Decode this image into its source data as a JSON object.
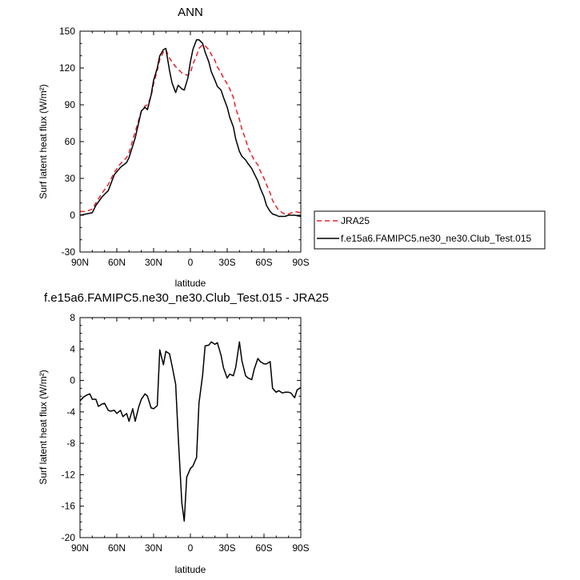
{
  "chart_data": [
    {
      "type": "line",
      "title": "ANN",
      "xlabel": "latitude",
      "ylabel": "Surf latent heat flux (W/m²)",
      "xlim": [
        -90,
        90
      ],
      "ylim": [
        -30,
        150
      ],
      "x_ticks": [
        -90,
        -60,
        -30,
        0,
        30,
        60,
        90
      ],
      "x_tick_labels": [
        "90N",
        "60N",
        "30N",
        "0",
        "30S",
        "60S",
        "90S"
      ],
      "y_ticks": [
        -30,
        0,
        30,
        60,
        90,
        120,
        150
      ],
      "y_tick_labels": [
        "-30",
        "0",
        "30",
        "60",
        "90",
        "120",
        "150"
      ],
      "legend_position": "right",
      "series": [
        {
          "name": "JRA25",
          "color": "#e8202a",
          "dash": "dashed",
          "x": [
            -90,
            -85,
            -80,
            -77,
            -72,
            -67,
            -62,
            -57,
            -52,
            -50,
            -45,
            -40,
            -37,
            -35,
            -32,
            -30,
            -27,
            -25,
            -22,
            -20,
            -17,
            -15,
            -12,
            -10,
            -7,
            -5,
            -2,
            0,
            2,
            5,
            7,
            10,
            12,
            15,
            17,
            20,
            22,
            25,
            27,
            30,
            32,
            35,
            37,
            40,
            42,
            45,
            47,
            50,
            52,
            55,
            57,
            60,
            62,
            65,
            67,
            70,
            72,
            75,
            77,
            80,
            85,
            90
          ],
          "y": [
            3,
            3,
            5,
            10,
            18,
            25,
            35,
            42,
            47,
            51,
            68,
            85,
            89,
            90,
            97,
            107,
            118,
            127,
            133,
            135,
            128,
            125,
            121,
            119,
            116,
            115,
            114,
            116,
            123,
            130,
            136,
            139,
            138,
            135,
            131,
            126,
            121,
            116,
            112,
            107,
            103,
            96,
            87,
            78,
            70,
            62,
            55,
            49,
            45,
            41,
            36,
            30,
            25,
            18,
            12,
            7,
            4,
            2,
            1,
            1,
            3,
            2
          ]
        },
        {
          "name": "f.e15a6.FAMIPC5.ne30_ne30.Club_Test.015",
          "color": "#000000",
          "dash": "solid",
          "x": [
            -90,
            -85,
            -80,
            -77,
            -72,
            -67,
            -62,
            -57,
            -52,
            -50,
            -45,
            -40,
            -37,
            -35,
            -32,
            -30,
            -27,
            -25,
            -22,
            -20,
            -17,
            -15,
            -12,
            -10,
            -7,
            -5,
            -2,
            0,
            2,
            5,
            7,
            10,
            12,
            15,
            17,
            20,
            22,
            25,
            27,
            30,
            32,
            35,
            37,
            40,
            42,
            45,
            47,
            50,
            52,
            55,
            57,
            60,
            62,
            65,
            67,
            70,
            72,
            75,
            77,
            80,
            85,
            90
          ],
          "y": [
            0,
            1,
            2,
            8,
            15,
            20,
            33,
            39,
            43,
            47,
            63,
            85,
            88,
            86,
            98,
            110,
            120,
            130,
            135,
            136,
            118,
            108,
            100,
            106,
            103,
            102,
            112,
            125,
            135,
            143,
            143,
            140,
            133,
            125,
            117,
            110,
            105,
            102,
            96,
            88,
            80,
            72,
            62,
            52,
            48,
            45,
            42,
            38,
            34,
            28,
            22,
            15,
            8,
            3,
            1,
            0,
            -1,
            -1,
            -1,
            0,
            0,
            -1
          ]
        }
      ]
    },
    {
      "type": "line",
      "title": "f.e15a6.FAMIPC5.ne30_ne30.Club_Test.015 - JRA25",
      "xlabel": "latitude",
      "ylabel": "Surf latent heat flux (W/m²)",
      "xlim": [
        -90,
        90
      ],
      "ylim": [
        -20,
        8
      ],
      "x_ticks": [
        -90,
        -60,
        -30,
        0,
        30,
        60,
        90
      ],
      "x_tick_labels": [
        "90N",
        "60N",
        "30N",
        "0",
        "30S",
        "60S",
        "90S"
      ],
      "y_ticks": [
        -20,
        -16,
        -12,
        -8,
        -4,
        0,
        4,
        8
      ],
      "y_tick_labels": [
        "-20",
        "-16",
        "-12",
        "-8",
        "-4",
        "0",
        "4",
        "8"
      ],
      "series": [
        {
          "color": "#000000",
          "dash": "solid",
          "x": [
            -90,
            -87,
            -85,
            -82,
            -80,
            -77,
            -75,
            -72,
            -70,
            -67,
            -65,
            -62,
            -60,
            -57,
            -55,
            -52,
            -50,
            -47,
            -45,
            -42,
            -40,
            -37,
            -35,
            -32,
            -30,
            -27,
            -25,
            -22,
            -20,
            -17,
            -15,
            -12,
            -10,
            -7,
            -5,
            -3,
            0,
            2,
            5,
            7,
            10,
            12,
            15,
            17,
            20,
            22,
            25,
            27,
            30,
            32,
            35,
            37,
            40,
            42,
            45,
            47,
            50,
            52,
            55,
            57,
            60,
            62,
            65,
            67,
            70,
            72,
            75,
            77,
            80,
            82,
            85,
            87,
            90
          ],
          "y": [
            -2.6,
            -2.1,
            -1.9,
            -1.7,
            -2.4,
            -2.4,
            -3.3,
            -3.0,
            -2.9,
            -3.8,
            -3.9,
            -3.8,
            -4.2,
            -3.8,
            -4.6,
            -4.2,
            -5.2,
            -3.6,
            -5.2,
            -3.3,
            -2.4,
            -1.7,
            -2.0,
            -3.5,
            -3.6,
            -3.2,
            3.9,
            2.0,
            3.7,
            3.4,
            1.9,
            -0.5,
            -7.0,
            -15.6,
            -17.9,
            -12.3,
            -11.2,
            -10.9,
            -9.8,
            -2.9,
            0.7,
            4.4,
            4.5,
            4.9,
            4.6,
            4.8,
            3.2,
            1.6,
            0.3,
            0.8,
            0.6,
            1.7,
            4.9,
            2.5,
            0.6,
            0.3,
            0.1,
            1.4,
            2.8,
            2.4,
            2.1,
            2.1,
            2.4,
            -1.0,
            -1.5,
            -1.3,
            -1.6,
            -1.5,
            -1.5,
            -1.6,
            -2.2,
            -1.2,
            -0.9
          ]
        }
      ]
    }
  ]
}
